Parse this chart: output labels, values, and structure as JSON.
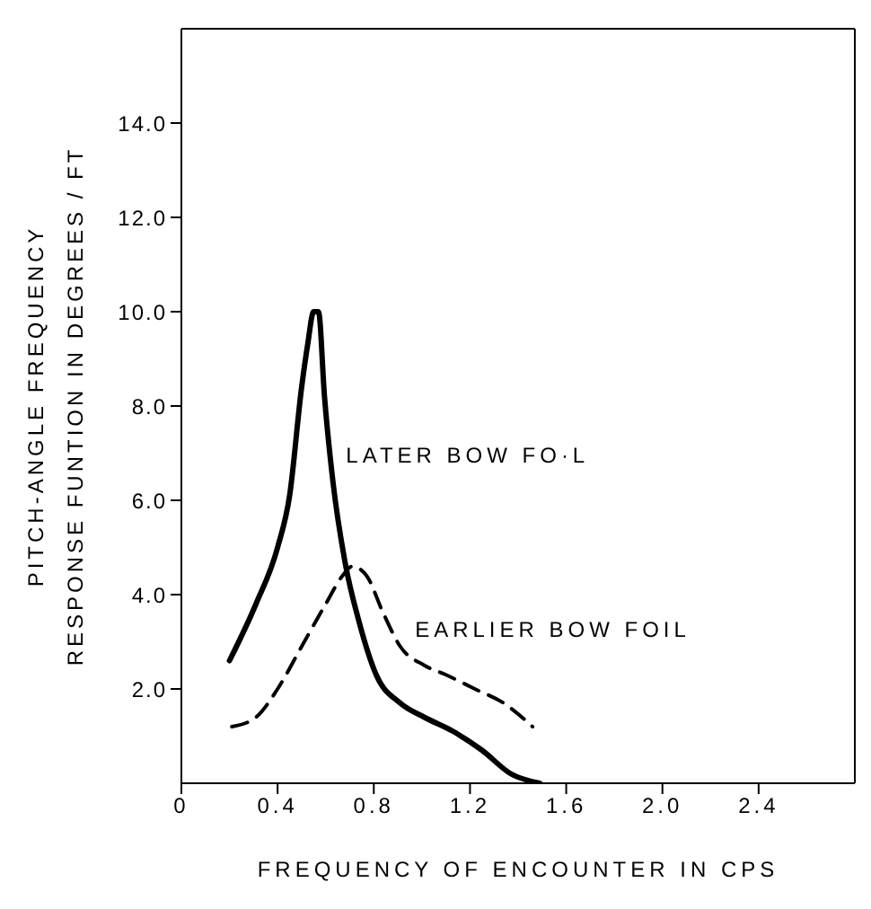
{
  "chart_data": {
    "type": "line",
    "xlabel": "FREQUENCY OF ENCOUNTER IN CPS",
    "ylabel": "PITCH-ANGLE FREQUENCY\nRESPONSE FUNTION IN DEGREES / FT",
    "xlim": [
      0,
      2.8
    ],
    "ylim": [
      0,
      16
    ],
    "xticks": [
      {
        "value": 0,
        "label": "0"
      },
      0.4,
      0.8,
      1.2,
      1.6,
      {
        "value": 2,
        "label": "2.0"
      },
      2.4
    ],
    "yticks": [
      {
        "value": 2,
        "label": "2.0"
      },
      {
        "value": 4,
        "label": "4.0"
      },
      {
        "value": 6,
        "label": "6.0"
      },
      {
        "value": 8,
        "label": "8.0"
      },
      {
        "value": 10,
        "label": "10.0"
      },
      {
        "value": 12,
        "label": "12.0"
      },
      {
        "value": 14,
        "label": "14.0"
      }
    ],
    "marker": "none",
    "series": [
      {
        "name": "LATER BOW FO·L",
        "color": "#000000",
        "line_style": "solid",
        "x": [
          0.2,
          0.31,
          0.4,
          0.45,
          0.5,
          0.525,
          0.55,
          0.57,
          0.595,
          0.63,
          0.68,
          0.74,
          0.81,
          0.91,
          1.01,
          1.13,
          1.25,
          1.37,
          1.49
        ],
        "values": [
          2.6,
          3.8,
          5.0,
          6.1,
          8.4,
          9.3,
          10.0,
          10.0,
          8.2,
          6.4,
          4.7,
          3.4,
          2.3,
          1.7,
          1.4,
          1.1,
          0.7,
          0.2,
          0
        ]
      },
      {
        "name": "EARLIER BOW FOIL",
        "color": "#000000",
        "line_style": "dashed",
        "x": [
          0.21,
          0.31,
          0.4,
          0.5,
          0.6,
          0.67,
          0.71,
          0.77,
          0.84,
          0.91,
          1.01,
          1.1,
          1.22,
          1.34,
          1.46
        ],
        "values": [
          1.2,
          1.4,
          2.0,
          2.9,
          3.8,
          4.4,
          4.6,
          4.4,
          3.6,
          2.9,
          2.5,
          2.3,
          2.0,
          1.7,
          1.2
        ]
      }
    ]
  }
}
